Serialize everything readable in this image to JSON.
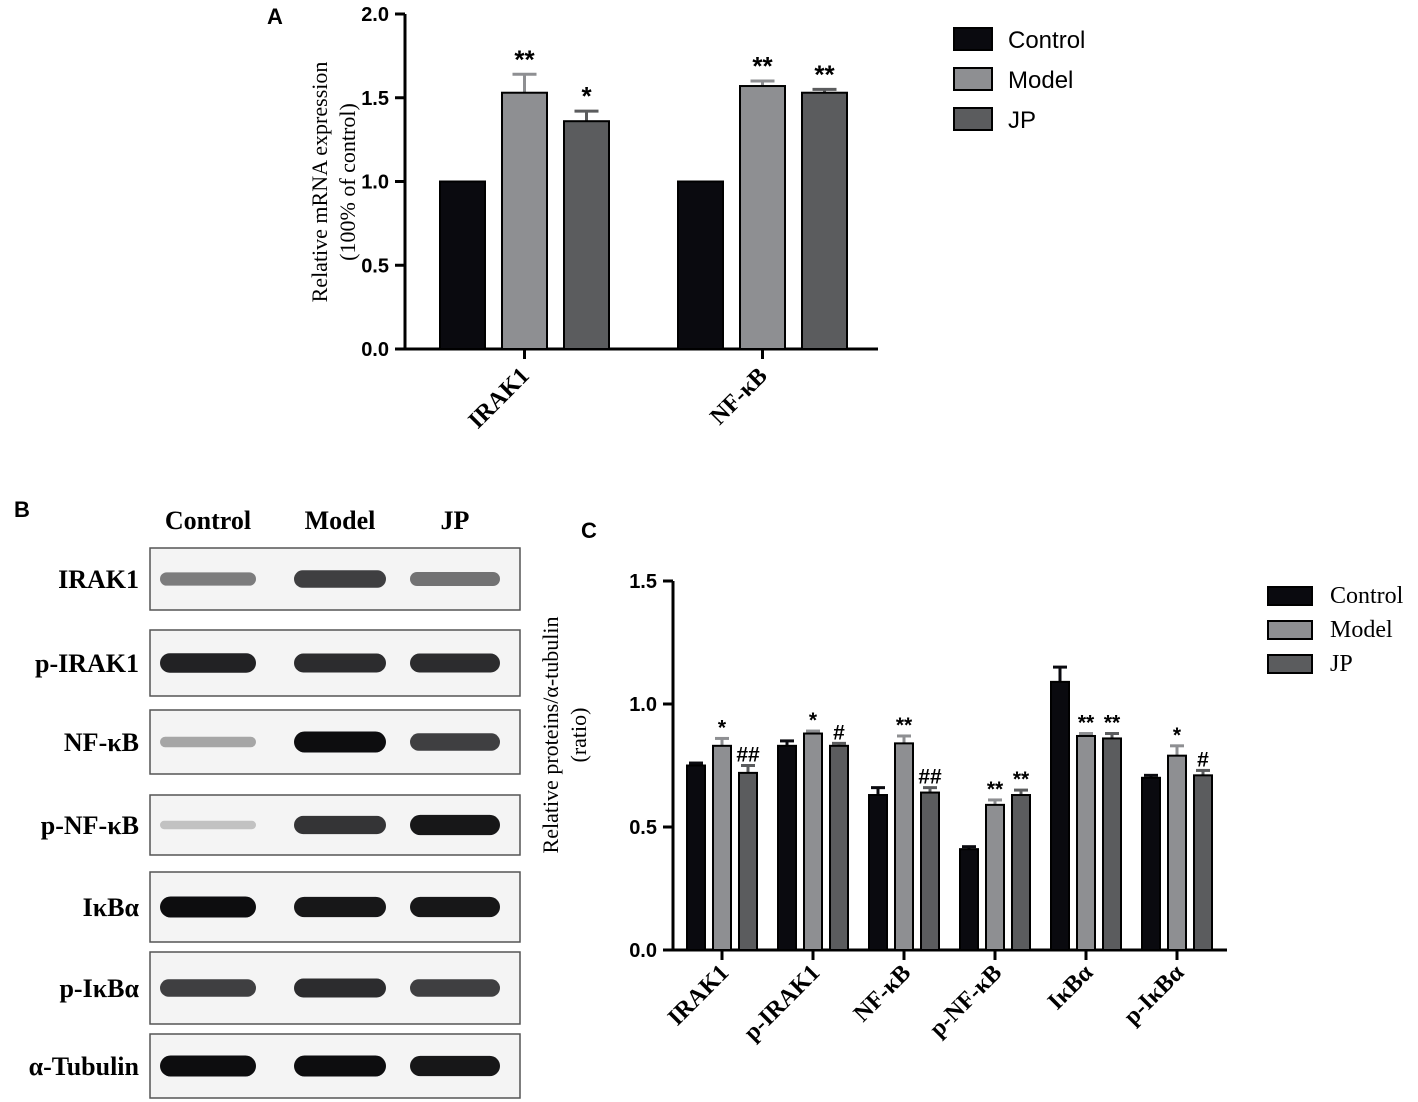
{
  "panels": {
    "a": "A",
    "b": "B",
    "c": "C"
  },
  "colors": {
    "Control": "#0a0a0f",
    "Model": "#8e8f92",
    "JP": "#5b5c5e"
  },
  "chart_data": [
    {
      "type": "bar",
      "panel": "A",
      "categories": [
        "IRAK1",
        "NF-κB"
      ],
      "series": [
        {
          "name": "Control",
          "values": [
            1.0,
            1.0
          ],
          "errors": [
            0,
            0
          ],
          "marks": [
            "",
            ""
          ]
        },
        {
          "name": "Model",
          "values": [
            1.53,
            1.57
          ],
          "errors": [
            0.11,
            0.03
          ],
          "marks": [
            "**",
            "**"
          ]
        },
        {
          "name": "JP",
          "values": [
            1.36,
            1.53
          ],
          "errors": [
            0.06,
            0.02
          ],
          "marks": [
            "*",
            "**"
          ]
        }
      ],
      "ylabel_lines": [
        "Relative mRNA expression",
        "(100% of control)"
      ],
      "ylim": [
        0,
        2.0
      ],
      "yticks": [
        "0.0",
        "0.5",
        "1.0",
        "1.5",
        "2.0"
      ],
      "legend": "right",
      "grid": false
    },
    {
      "type": "bar",
      "panel": "C",
      "categories": [
        "IRAK1",
        "p-IRAK1",
        "NF-κB",
        "p-NF-κB",
        "IκBα",
        "p-IκBα"
      ],
      "series": [
        {
          "name": "Control",
          "values": [
            0.75,
            0.83,
            0.63,
            0.41,
            1.09,
            0.7
          ],
          "errors": [
            0.01,
            0.02,
            0.03,
            0.01,
            0.06,
            0.01
          ],
          "marks": [
            "",
            "",
            "",
            "",
            "",
            ""
          ]
        },
        {
          "name": "Model",
          "values": [
            0.83,
            0.88,
            0.84,
            0.59,
            0.87,
            0.79
          ],
          "errors": [
            0.03,
            0.01,
            0.03,
            0.02,
            0.01,
            0.04
          ],
          "marks": [
            "*",
            "*",
            "**",
            "**",
            "**",
            "*"
          ]
        },
        {
          "name": "JP",
          "values": [
            0.72,
            0.83,
            0.64,
            0.63,
            0.86,
            0.71
          ],
          "errors": [
            0.03,
            0.01,
            0.02,
            0.02,
            0.02,
            0.02
          ],
          "marks": [
            "##",
            "#",
            "##",
            "**",
            "**",
            "#"
          ]
        }
      ],
      "ylabel_lines": [
        "Relative proteins/α-tubulin",
        "(ratio)"
      ],
      "ylim": [
        0,
        1.5
      ],
      "yticks": [
        "0.0",
        "0.5",
        "1.0",
        "1.5"
      ],
      "legend": "right",
      "grid": false
    }
  ],
  "blot": {
    "columns": [
      "Control",
      "Model",
      "JP"
    ],
    "rows": [
      {
        "label": "IRAK1",
        "band": [
          0.45,
          0.75,
          0.5
        ]
      },
      {
        "label": "p-IRAK1",
        "band": [
          0.9,
          0.85,
          0.85
        ]
      },
      {
        "label": "NF-κB",
        "band": [
          0.25,
          1.0,
          0.75
        ]
      },
      {
        "label": "p-NF-κB",
        "band": [
          0.1,
          0.8,
          0.95
        ]
      },
      {
        "label": "IκBα",
        "band": [
          1.0,
          0.95,
          0.95
        ]
      },
      {
        "label": "p-IκBα",
        "band": [
          0.75,
          0.85,
          0.75
        ]
      },
      {
        "label": "α-Tubulin",
        "band": [
          1.0,
          1.0,
          0.95
        ]
      }
    ]
  }
}
